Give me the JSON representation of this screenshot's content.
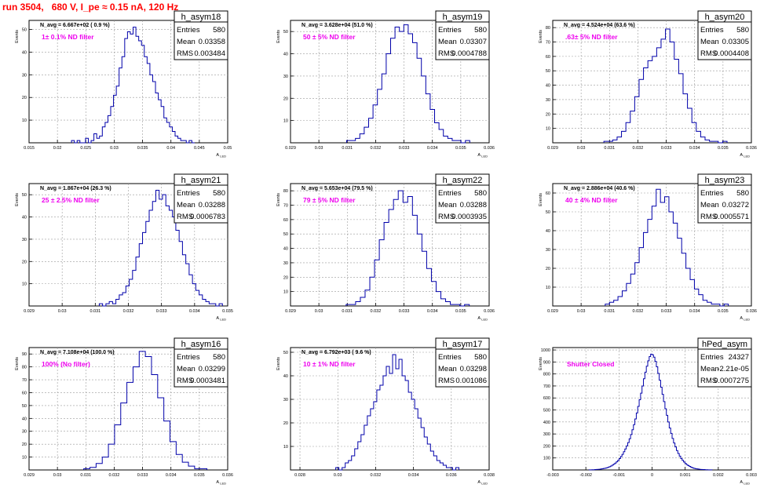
{
  "title": "run 3504,   680 V, I_pe ≈ 0.15 nA, 120 Hz",
  "colors": {
    "hist": "#0000aa",
    "filter_label": "#ee00ee",
    "title": "#ff0000",
    "grid": "#9a9a9a"
  },
  "stats_labels": {
    "entries": "Entries",
    "mean": "Mean",
    "rms": "RMS"
  },
  "y_axis_label": "Events",
  "x_axis_label": "A_LED",
  "chart_data": [
    {
      "type": "bar",
      "name": "h_asym18",
      "nval": "N_avg = 6.667e+02 ( 0.9 %)",
      "filter": "1± 0.1% ND filter",
      "entries": "580",
      "mean": "0.03358",
      "rms": "0.003484",
      "xlim": [
        0.015,
        0.05
      ],
      "xticks": [
        "0.015",
        "0.02",
        "0.025",
        "0.03",
        "0.035",
        "0.04",
        "0.045",
        "0.05"
      ],
      "ylim": [
        0,
        54
      ],
      "yticks": [
        "10",
        "20",
        "30",
        "40",
        "50"
      ],
      "values": [
        1,
        0,
        1,
        0,
        0,
        2,
        0,
        1,
        4,
        2,
        3,
        7,
        9,
        12,
        16,
        21,
        25,
        33,
        38,
        46,
        49,
        48,
        51,
        47,
        45,
        43,
        38,
        35,
        30,
        27,
        22,
        19,
        16,
        11,
        9,
        7,
        5,
        3,
        2,
        1,
        1,
        0,
        1,
        0
      ]
    },
    {
      "type": "bar",
      "name": "h_asym19",
      "nval": "N_avg = 3.628e+04 (51.0 %)",
      "filter": "50 ± 5% ND filter",
      "entries": "580",
      "mean": "0.03307",
      "rms": "0.0004788",
      "xlim": [
        0.029,
        0.036
      ],
      "xticks": [
        "0.029",
        "0.03",
        "0.031",
        "0.032",
        "0.033",
        "0.034",
        "0.035",
        "0.036"
      ],
      "ylim": [
        0,
        55
      ],
      "yticks": [
        "10",
        "20",
        "30",
        "40",
        "50"
      ],
      "values": [
        1,
        1,
        2,
        4,
        7,
        11,
        17,
        24,
        31,
        40,
        47,
        52,
        50,
        53,
        49,
        45,
        38,
        30,
        22,
        15,
        9,
        6,
        3,
        2,
        1,
        1,
        0,
        1
      ]
    },
    {
      "type": "bar",
      "name": "h_asym20",
      "nval": "N_avg = 4.524e+04 (63.6 %)",
      "filter": ".63± 5% ND filter",
      "entries": "580",
      "mean": "0.03305",
      "rms": "0.0004408",
      "xlim": [
        0.029,
        0.036
      ],
      "xticks": [
        "0.029",
        "0.03",
        "0.031",
        "0.032",
        "0.033",
        "0.034",
        "0.035",
        "0.036"
      ],
      "ylim": [
        0,
        85
      ],
      "yticks": [
        "10",
        "20",
        "30",
        "40",
        "50",
        "60",
        "70",
        "80"
      ],
      "values": [
        1,
        1,
        2,
        4,
        8,
        14,
        22,
        32,
        44,
        52,
        57,
        60,
        66,
        72,
        79,
        70,
        58,
        48,
        34,
        24,
        14,
        8,
        4,
        2,
        1,
        1,
        0,
        1
      ]
    },
    {
      "type": "bar",
      "name": "h_asym21",
      "nval": "N_avg = 1.867e+04 (26.3 %)",
      "filter": "25 ± 2.5% ND filter",
      "entries": "580",
      "mean": "0.03288",
      "rms": "0.0006783",
      "xlim": [
        0.029,
        0.035
      ],
      "xticks": [
        "0.029",
        "0.03",
        "0.031",
        "0.032",
        "0.033",
        "0.034",
        "0.035"
      ],
      "ylim": [
        0,
        55
      ],
      "yticks": [
        "10",
        "20",
        "30",
        "40",
        "50"
      ],
      "values": [
        1,
        0,
        1,
        2,
        1,
        3,
        5,
        6,
        9,
        12,
        16,
        22,
        28,
        33,
        38,
        43,
        47,
        52,
        48,
        50,
        45,
        43,
        40,
        34,
        29,
        23,
        19,
        14,
        10,
        7,
        5,
        3,
        2,
        1,
        1,
        0,
        1
      ]
    },
    {
      "type": "bar",
      "name": "h_asym22",
      "nval": "N_avg = 5.653e+04 (79.5 %)",
      "filter": "79 ± 5% ND filter",
      "entries": "580",
      "mean": "0.03288",
      "rms": "0.0003935",
      "xlim": [
        0.029,
        0.036
      ],
      "xticks": [
        "0.029",
        "0.03",
        "0.031",
        "0.032",
        "0.033",
        "0.034",
        "0.035",
        "0.036"
      ],
      "ylim": [
        0,
        85
      ],
      "yticks": [
        "10",
        "20",
        "30",
        "40",
        "50",
        "60",
        "70",
        "80"
      ],
      "values": [
        1,
        1,
        3,
        6,
        11,
        20,
        32,
        46,
        58,
        67,
        74,
        80,
        72,
        76,
        63,
        50,
        38,
        26,
        17,
        10,
        5,
        3,
        1,
        1,
        0,
        1
      ]
    },
    {
      "type": "bar",
      "name": "h_asym23",
      "nval": "N_avg = 2.886e+04 (40.6 %)",
      "filter": "40 ± 4% ND filter",
      "entries": "580",
      "mean": "0.03272",
      "rms": "0.0005571",
      "xlim": [
        0.029,
        0.036
      ],
      "xticks": [
        "0.029",
        "0.03",
        "0.031",
        "0.032",
        "0.033",
        "0.034",
        "0.035",
        "0.036"
      ],
      "ylim": [
        0,
        65
      ],
      "yticks": [
        "10",
        "20",
        "30",
        "40",
        "50",
        "60"
      ],
      "values": [
        1,
        2,
        3,
        5,
        8,
        12,
        17,
        23,
        31,
        39,
        46,
        53,
        62,
        55,
        58,
        50,
        44,
        36,
        28,
        20,
        14,
        9,
        6,
        3,
        2,
        1,
        1,
        0,
        1
      ]
    },
    {
      "type": "bar",
      "name": "h_asym16",
      "nval": "N_avg = 7.108e+04 (100.0 %)",
      "filter": "100% (No filter)",
      "entries": "580",
      "mean": "0.03299",
      "rms": "0.0003481",
      "xlim": [
        0.029,
        0.036
      ],
      "xticks": [
        "0.029",
        "0.03",
        "0.031",
        "0.032",
        "0.033",
        "0.034",
        "0.035",
        "0.036"
      ],
      "ylim": [
        0,
        95
      ],
      "yticks": [
        "10",
        "20",
        "30",
        "40",
        "50",
        "60",
        "70",
        "80",
        "90"
      ],
      "values": [
        1,
        2,
        5,
        10,
        20,
        35,
        52,
        68,
        80,
        92,
        88,
        74,
        56,
        38,
        22,
        12,
        6,
        3,
        1,
        1
      ]
    },
    {
      "type": "bar",
      "name": "h_asym17",
      "nval": "N_avg = 6.792e+03 ( 9.6 %)",
      "filter": "10 ± 1% ND filter",
      "entries": "580",
      "mean": "0.03298",
      "rms": "0.001086",
      "xlim": [
        0.0275,
        0.038
      ],
      "xticks": [
        "0.028",
        "0.03",
        "0.032",
        "0.034",
        "0.036",
        "0.038"
      ],
      "ylim": [
        0,
        52
      ],
      "yticks": [
        "10",
        "20",
        "30",
        "40",
        "50"
      ],
      "values": [
        1,
        0,
        1,
        3,
        4,
        6,
        9,
        12,
        15,
        19,
        23,
        26,
        29,
        34,
        36,
        40,
        44,
        41,
        49,
        43,
        47,
        40,
        38,
        33,
        30,
        26,
        22,
        18,
        14,
        11,
        8,
        6,
        4,
        3,
        2,
        1,
        1,
        0,
        1
      ]
    },
    {
      "type": "bar",
      "name": "hPed_asym",
      "nval": "",
      "filter": "Shutter Closed",
      "entries": "24327",
      "mean": "-2.21e-05",
      "rms": "0.0007275",
      "xlim": [
        -0.003,
        0.003
      ],
      "xticks": [
        "-0.003",
        "-0.002",
        "-0.001",
        "0",
        "0.001",
        "0.002",
        "0.003"
      ],
      "ylim": [
        0,
        1020
      ],
      "yticks": [
        "100",
        "200",
        "300",
        "400",
        "500",
        "600",
        "700",
        "800",
        "900",
        "1000"
      ],
      "values": [
        1,
        1,
        2,
        2,
        3,
        4,
        5,
        6,
        8,
        10,
        12,
        15,
        18,
        22,
        27,
        33,
        40,
        48,
        57,
        68,
        80,
        95,
        112,
        130,
        152,
        175,
        200,
        228,
        260,
        295,
        335,
        378,
        425,
        475,
        530,
        585,
        640,
        700,
        760,
        815,
        865,
        910,
        945,
        965,
        960,
        940,
        905,
        860,
        805,
        748,
        690,
        630,
        570,
        510,
        455,
        400,
        350,
        305,
        262,
        225,
        192,
        162,
        137,
        115,
        96,
        80,
        66,
        54,
        44,
        36,
        29,
        23,
        18,
        14,
        11,
        9,
        7,
        5,
        4,
        3,
        3,
        2,
        2,
        1,
        1,
        1
      ]
    }
  ]
}
